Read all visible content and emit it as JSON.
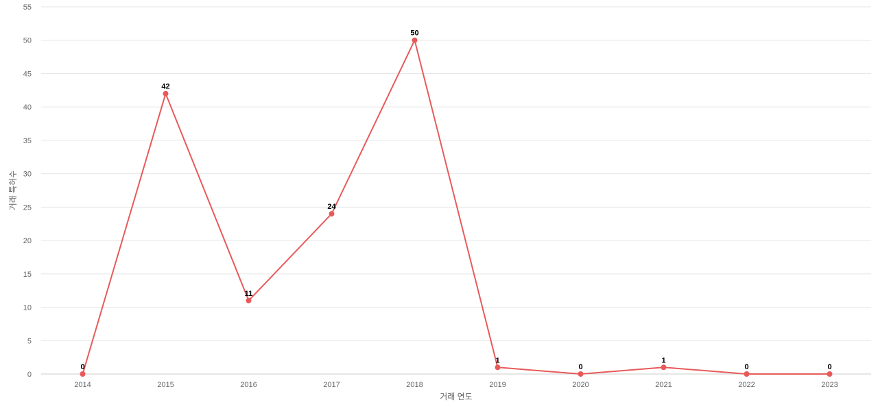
{
  "chart_data": {
    "type": "line",
    "title": "",
    "xlabel": "거래 연도",
    "ylabel": "거래 특허수",
    "categories": [
      "2014",
      "2015",
      "2016",
      "2017",
      "2018",
      "2019",
      "2020",
      "2021",
      "2022",
      "2023"
    ],
    "series": [
      {
        "values": [
          0,
          42,
          11,
          24,
          50,
          1,
          0,
          1,
          0,
          0
        ]
      }
    ],
    "ylim": [
      0,
      55
    ],
    "yticks": [
      "0",
      "5",
      "10",
      "15",
      "20",
      "25",
      "30",
      "35",
      "40",
      "45",
      "50",
      "55"
    ],
    "grid": true,
    "data_labels": true,
    "colors": {
      "series": "#e85a5a",
      "grid": "#e6e6e6",
      "text": "#666666"
    }
  }
}
